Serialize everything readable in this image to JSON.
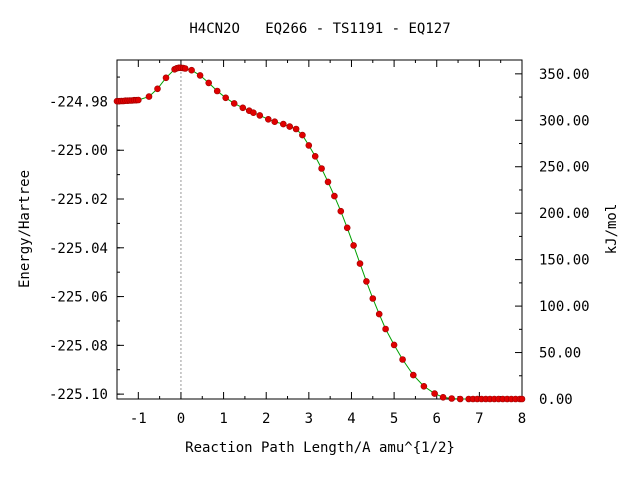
{
  "chart_data": {
    "type": "line",
    "title": "H4CN2O   EQ266 - TS1191 - EQ127",
    "xlabel": "Reaction Path Length/A amu^{1/2}",
    "ylabel": "Energy/Hartree",
    "y2label": "kJ/mol",
    "xlim": [
      -1.5,
      8
    ],
    "ylim": [
      -225.102,
      -224.963
    ],
    "y2lim": [
      0,
      364.9
    ],
    "x_ticks": [
      -1,
      0,
      1,
      2,
      3,
      4,
      5,
      6,
      7,
      8
    ],
    "x_tick_labels": [
      "-1",
      "0",
      "1",
      "2",
      "3",
      "4",
      "5",
      "6",
      "7",
      "8"
    ],
    "y_ticks": [
      -224.98,
      -225.0,
      -225.02,
      -225.04,
      -225.06,
      -225.08,
      -225.1
    ],
    "y_tick_labels": [
      "-224.98",
      "-225.00",
      "-225.02",
      "-225.04",
      "-225.06",
      "-225.08",
      "-225.10"
    ],
    "y2_ticks": [
      0,
      50,
      100,
      150,
      200,
      250,
      300,
      350
    ],
    "y2_tick_labels": [
      "0.00",
      "50.00",
      "100.00",
      "150.00",
      "200.00",
      "250.00",
      "300.00",
      "350.00"
    ],
    "ts_x": 0,
    "series": [
      {
        "line_color": "#00a000",
        "marker_color": "#e00000",
        "x": [
          -1.5,
          -1.45,
          -1.4,
          -1.35,
          -1.3,
          -1.25,
          -1.2,
          -1.15,
          -1.1,
          -1.05,
          -1.0,
          -0.75,
          -0.55,
          -0.35,
          -0.15,
          -0.1,
          -0.05,
          0.0,
          0.05,
          0.1,
          0.25,
          0.45,
          0.65,
          0.85,
          1.05,
          1.25,
          1.45,
          1.6,
          1.7,
          1.85,
          2.05,
          2.2,
          2.4,
          2.55,
          2.7,
          2.85,
          3.0,
          3.15,
          3.3,
          3.45,
          3.6,
          3.75,
          3.9,
          4.05,
          4.2,
          4.35,
          4.5,
          4.65,
          4.8,
          5.0,
          5.2,
          5.45,
          5.7,
          5.95,
          6.15,
          6.35,
          6.55,
          6.75,
          6.85,
          6.95,
          7.05,
          7.15,
          7.25,
          7.35,
          7.45,
          7.55,
          7.65,
          7.75,
          7.85,
          7.95,
          8.0
        ],
        "y": [
          -224.9799,
          -224.9799,
          -224.9798,
          -224.9798,
          -224.9797,
          -224.9797,
          -224.9796,
          -224.9796,
          -224.9795,
          -224.9795,
          -224.9794,
          -224.978,
          -224.9748,
          -224.9703,
          -224.9668,
          -224.9664,
          -224.9662,
          -224.9662,
          -224.9663,
          -224.9665,
          -224.9672,
          -224.9693,
          -224.9724,
          -224.9757,
          -224.9785,
          -224.9808,
          -224.9826,
          -224.9838,
          -224.9846,
          -224.9857,
          -224.9873,
          -224.9883,
          -224.9893,
          -224.9903,
          -224.9913,
          -224.9938,
          -224.998,
          -225.0025,
          -225.0075,
          -225.013,
          -225.0188,
          -225.025,
          -225.0318,
          -225.039,
          -225.0465,
          -225.0538,
          -225.0608,
          -225.0672,
          -225.0733,
          -225.0798,
          -225.0858,
          -225.0922,
          -225.0968,
          -225.0998,
          -225.1013,
          -225.1018,
          -225.102,
          -225.102,
          -225.102,
          -225.102,
          -225.102,
          -225.102,
          -225.102,
          -225.102,
          -225.102,
          -225.102,
          -225.102,
          -225.102,
          -225.102,
          -225.102,
          -225.102
        ]
      }
    ]
  }
}
